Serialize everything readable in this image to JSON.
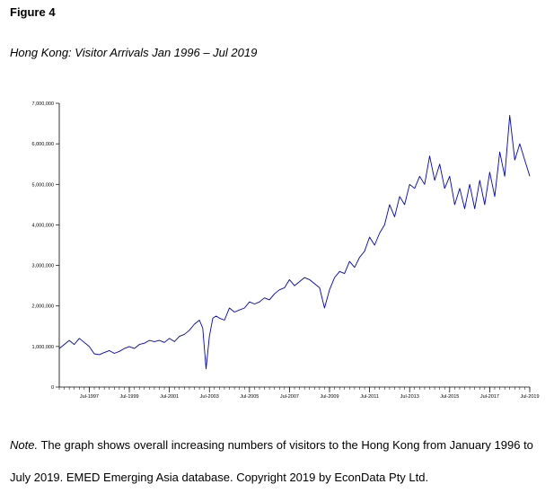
{
  "figure_label": "Figure 4",
  "title": "Hong Kong: Visitor Arrivals Jan 1996 – Jul 2019",
  "note": {
    "lead": "Note.",
    "line1": " The graph shows overall increasing numbers of visitors to the Hong Kong from January 1996 to",
    "line2": "July 2019. EMED Emerging Asia database. Copyright 2019 by EconData Pty Ltd."
  },
  "chart_data": {
    "type": "line",
    "title": "",
    "xlabel": "",
    "ylabel": "",
    "line_color": "#0000cc",
    "x_range": [
      "1996-01",
      "2019-07"
    ],
    "ylim": [
      0,
      7000000
    ],
    "y_ticks": [
      {
        "value": 0,
        "label": "0"
      },
      {
        "value": 1000000,
        "label": "1,000,000"
      },
      {
        "value": 2000000,
        "label": "2,000,000"
      },
      {
        "value": 3000000,
        "label": "3,000,000"
      },
      {
        "value": 4000000,
        "label": "4,000,000"
      },
      {
        "value": 5000000,
        "label": "5,000,000"
      },
      {
        "value": 6000000,
        "label": "6,000,000"
      },
      {
        "value": 7000000,
        "label": "7,000,000"
      }
    ],
    "x_ticks": [
      {
        "value": "1997-07",
        "label": "Jul-1997"
      },
      {
        "value": "1999-07",
        "label": "Jul-1999"
      },
      {
        "value": "2001-07",
        "label": "Jul-2001"
      },
      {
        "value": "2003-07",
        "label": "Jul-2003"
      },
      {
        "value": "2005-07",
        "label": "Jul-2005"
      },
      {
        "value": "2007-07",
        "label": "Jul-2007"
      },
      {
        "value": "2009-07",
        "label": "Jul-2009"
      },
      {
        "value": "2011-07",
        "label": "Jul-2011"
      },
      {
        "value": "2013-07",
        "label": "Jul-2013"
      },
      {
        "value": "2015-07",
        "label": "Jul-2015"
      },
      {
        "value": "2017-07",
        "label": "Jul-2017"
      },
      {
        "value": "2019-07",
        "label": "Jul-2019"
      }
    ],
    "grid": false,
    "series": [
      {
        "x": [
          "1996-01",
          "1996-04",
          "1996-07",
          "1996-10",
          "1997-01",
          "1997-04",
          "1997-07",
          "1997-10",
          "1998-01",
          "1998-04",
          "1998-07",
          "1998-10",
          "1999-01",
          "1999-04",
          "1999-07",
          "1999-10",
          "2000-01",
          "2000-04",
          "2000-07",
          "2000-10",
          "2001-01",
          "2001-04",
          "2001-07",
          "2001-10",
          "2002-01",
          "2002-04",
          "2002-07",
          "2002-10",
          "2003-01",
          "2003-03",
          "2003-05",
          "2003-07",
          "2003-09",
          "2003-11",
          "2004-01",
          "2004-04",
          "2004-07",
          "2004-10",
          "2005-01",
          "2005-04",
          "2005-07",
          "2005-10",
          "2006-01",
          "2006-04",
          "2006-07",
          "2006-10",
          "2007-01",
          "2007-04",
          "2007-07",
          "2007-10",
          "2008-01",
          "2008-04",
          "2008-07",
          "2008-10",
          "2009-01",
          "2009-04",
          "2009-07",
          "2009-10",
          "2010-01",
          "2010-04",
          "2010-07",
          "2010-10",
          "2011-01",
          "2011-04",
          "2011-07",
          "2011-10",
          "2012-01",
          "2012-04",
          "2012-07",
          "2012-10",
          "2013-01",
          "2013-04",
          "2013-07",
          "2013-10",
          "2014-01",
          "2014-04",
          "2014-07",
          "2014-10",
          "2015-01",
          "2015-04",
          "2015-07",
          "2015-10",
          "2016-01",
          "2016-04",
          "2016-07",
          "2016-10",
          "2017-01",
          "2017-04",
          "2017-07",
          "2017-10",
          "2018-01",
          "2018-04",
          "2018-07",
          "2018-10",
          "2019-01",
          "2019-04",
          "2019-07"
        ],
        "y": [
          950000,
          1050000,
          1150000,
          1050000,
          1200000,
          1100000,
          1000000,
          820000,
          800000,
          850000,
          900000,
          830000,
          880000,
          950000,
          1000000,
          950000,
          1050000,
          1080000,
          1150000,
          1120000,
          1150000,
          1100000,
          1200000,
          1120000,
          1250000,
          1300000,
          1400000,
          1550000,
          1650000,
          1450000,
          450000,
          1250000,
          1700000,
          1750000,
          1700000,
          1650000,
          1950000,
          1850000,
          1900000,
          1950000,
          2100000,
          2050000,
          2100000,
          2200000,
          2150000,
          2300000,
          2400000,
          2450000,
          2650000,
          2500000,
          2600000,
          2700000,
          2650000,
          2550000,
          2450000,
          1950000,
          2400000,
          2700000,
          2850000,
          2800000,
          3100000,
          2950000,
          3200000,
          3350000,
          3700000,
          3500000,
          3800000,
          4000000,
          4500000,
          4200000,
          4700000,
          4500000,
          5000000,
          4900000,
          5200000,
          5000000,
          5700000,
          5100000,
          5500000,
          4900000,
          5200000,
          4500000,
          4900000,
          4400000,
          5000000,
          4400000,
          5100000,
          4500000,
          5300000,
          4700000,
          5800000,
          5200000,
          6700000,
          5600000,
          6000000,
          5600000,
          5200000
        ]
      }
    ]
  }
}
